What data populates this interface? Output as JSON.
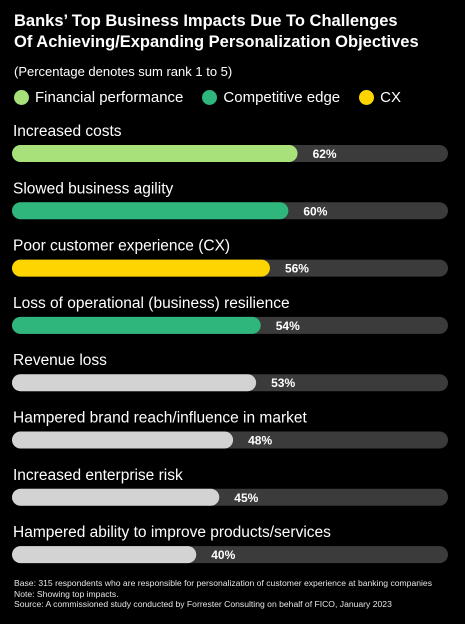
{
  "title_lines": [
    "Banks’ Top Business Impacts Due To Challenges",
    "Of Achieving/Expanding Personalization Objectives"
  ],
  "subtitle": "(Percentage denotes sum rank 1 to 5)",
  "legend": [
    {
      "name": "Financial performance",
      "color": "#a8e07a"
    },
    {
      "name": "Competitive edge",
      "color": "#2eb67d"
    },
    {
      "name": "CX",
      "color": "#ffd500"
    }
  ],
  "colors": {
    "track": "#3b3b3b",
    "other": "#d3d3d3",
    "value_text": "#ffffff"
  },
  "chart_data": {
    "type": "bar",
    "orientation": "horizontal",
    "xlim": [
      0,
      100
    ],
    "categories": [
      "Increased costs",
      "Slowed business agility",
      "Poor customer experience (CX)",
      "Loss of operational (business) resilience",
      "Revenue loss",
      "Hampered brand reach/influence in market",
      "Increased enterprise risk",
      "Hampered ability to improve products/services"
    ],
    "values": [
      62,
      60,
      56,
      54,
      53,
      48,
      45,
      40
    ],
    "value_labels": [
      "62%",
      "60%",
      "56%",
      "54%",
      "53%",
      "48%",
      "45%",
      "40%"
    ],
    "group": [
      "Financial performance",
      "Competitive edge",
      "CX",
      "Competitive edge",
      "",
      "",
      "",
      ""
    ]
  },
  "footnotes": [
    "Base: 315 respondents who are responsible for personalization of customer experience at banking companies",
    "Note: Showing top impacts.",
    "Source: A commissioned study conducted by Forrester Consulting on behalf of FICO, January 2023"
  ]
}
